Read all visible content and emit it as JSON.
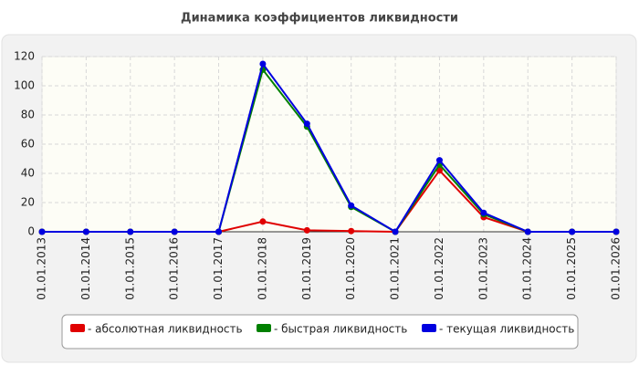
{
  "chart_data": {
    "type": "line",
    "title": "Динамика коэффициентов ликвидности",
    "categories": [
      "01.01.2013",
      "01.01.2014",
      "01.01.2015",
      "01.01.2016",
      "01.01.2017",
      "01.01.2018",
      "01.01.2019",
      "01.01.2020",
      "01.01.2021",
      "01.01.2022",
      "01.01.2023",
      "01.01.2024",
      "01.01.2025",
      "01.01.2026"
    ],
    "series": [
      {
        "name": "- абсолютная ликвидность",
        "color": "#e00000",
        "values": [
          0,
          0,
          0,
          0,
          0,
          7,
          1,
          0.5,
          0,
          42,
          10,
          0,
          0,
          0
        ]
      },
      {
        "name": "- быстрая ликвидность",
        "color": "#008000",
        "values": [
          0,
          0,
          0,
          0,
          0,
          111,
          72,
          17,
          0,
          46,
          12,
          0,
          0,
          0
        ]
      },
      {
        "name": "- текущая ликвидность",
        "color": "#0000e0",
        "values": [
          0,
          0,
          0,
          0,
          0,
          115,
          74,
          18,
          0,
          49,
          13,
          0,
          0,
          0
        ]
      }
    ],
    "ylim": [
      0,
      120
    ],
    "yticks": [
      0,
      20,
      40,
      60,
      80,
      100,
      120
    ],
    "grid": true
  }
}
